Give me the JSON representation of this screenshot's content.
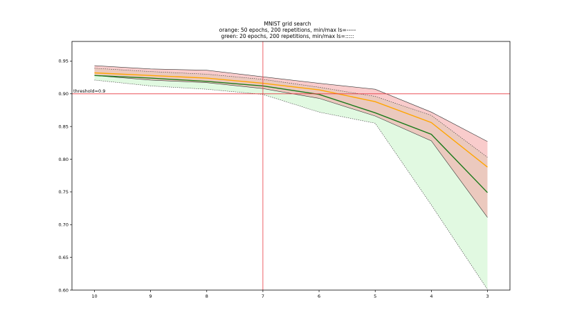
{
  "chart_data": {
    "type": "line",
    "title": "MNIST grid search",
    "subtitle_lines": [
      "orange: 50 epochs, 200 repetitions, min/max ls=-----",
      "green: 20 epochs, 200 repetitions, min/max ls=:::::"
    ],
    "x": [
      10,
      9,
      8,
      7,
      6,
      5,
      4,
      3
    ],
    "x_tick_labels": [
      "10",
      "9",
      "8",
      "7",
      "6",
      "5",
      "4",
      "3"
    ],
    "xlim": [
      10.4,
      2.6
    ],
    "ylim": [
      0.6,
      0.98
    ],
    "y_ticks": [
      0.6,
      0.65,
      0.7,
      0.75,
      0.8,
      0.85,
      0.9,
      0.95
    ],
    "y_tick_labels": [
      "0.60",
      "0.65",
      "0.70",
      "0.75",
      "0.80",
      "0.85",
      "0.90",
      "0.95"
    ],
    "series": [
      {
        "color": "#ffa500",
        "mean": [
          0.932,
          0.928,
          0.924,
          0.916,
          0.906,
          0.888,
          0.856,
          0.788
        ],
        "min": [
          0.928,
          0.921,
          0.917,
          0.908,
          0.893,
          0.866,
          0.828,
          0.711
        ],
        "max": [
          0.943,
          0.938,
          0.936,
          0.926,
          0.916,
          0.907,
          0.872,
          0.827
        ],
        "band_color": "#f4a3a3",
        "band_linestyle": "solid"
      },
      {
        "color": "#1a7a1a",
        "mean": [
          0.928,
          0.924,
          0.919,
          0.912,
          0.899,
          0.871,
          0.838,
          0.749
        ],
        "min": [
          0.921,
          0.912,
          0.907,
          0.899,
          0.872,
          0.855,
          0.73,
          0.601
        ],
        "max": [
          0.939,
          0.934,
          0.93,
          0.922,
          0.91,
          0.896,
          0.867,
          0.803
        ],
        "band_color": "#a9efa9",
        "band_linestyle": "dotted"
      }
    ],
    "threshold": {
      "y": 0.9,
      "label": "threshold=0.9",
      "color": "#e8373f"
    },
    "vline": {
      "x": 7,
      "color": "#e8373f"
    },
    "grid": false
  }
}
